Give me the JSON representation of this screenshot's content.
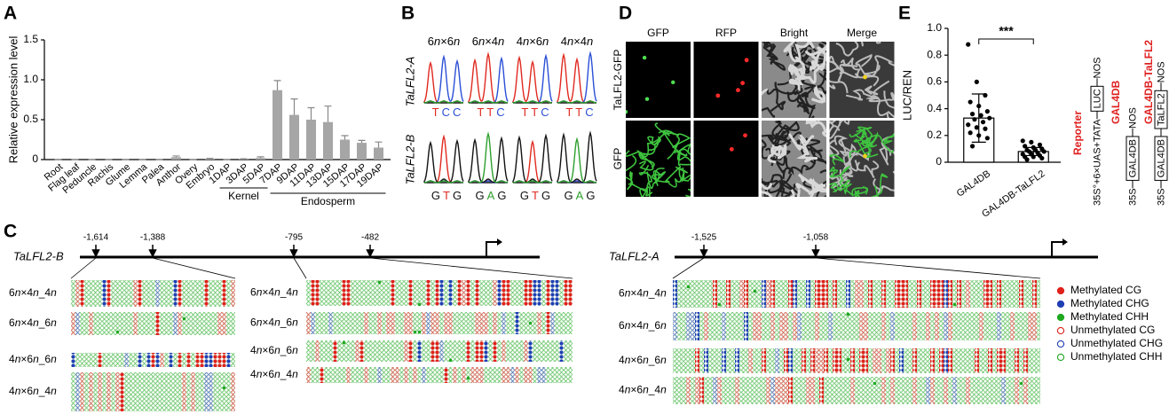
{
  "panel_labels": [
    "A",
    "B",
    "C",
    "D",
    "E"
  ],
  "chart_data": [
    {
      "type": "bar",
      "ylabel": "Relative expression level",
      "categories": [
        "Root",
        "Flag leaf",
        "Peduncle",
        "Rachis",
        "Glume",
        "Lemma",
        "Palea",
        "Anthor",
        "Overy",
        "Embryo",
        "1DAP",
        "3DAP",
        "5DAP",
        "7DAP",
        "9DAP",
        "11DAP",
        "13DAP",
        "15DAP",
        "17DAP",
        "19DAP"
      ],
      "values": [
        0,
        0,
        0,
        0,
        0,
        0,
        0,
        0.03,
        0,
        0.01,
        0,
        0.005,
        0.02,
        0.87,
        0.56,
        0.5,
        0.47,
        0.25,
        0.21,
        0.15
      ],
      "errors": [
        0,
        0,
        0,
        0,
        0,
        0,
        0,
        0.015,
        0,
        0.005,
        0,
        0.005,
        0.015,
        0.12,
        0.2,
        0.15,
        0.2,
        0.05,
        0.03,
        0.07
      ],
      "color": "#a6a6a6",
      "groups": [
        {
          "label": "Kernel"
        },
        {
          "label": "Endosperm"
        }
      ],
      "ylim": [
        0,
        1.5
      ],
      "yticks": [
        0,
        0.5,
        {
          "value": 1,
          "label": "1.0"
        },
        1.5
      ]
    },
    {
      "type": "bar",
      "ylabel": "LUC/REN",
      "categories": [
        "GAL4DB",
        "GAL4DB-TaLFL2"
      ],
      "values": [
        0.33,
        0.08
      ],
      "errors": [
        0.18,
        0.03
      ],
      "color": "#ffffff",
      "point_color": "#000000",
      "points": [
        [
          0.88,
          0.6,
          0.5,
          0.45,
          0.42,
          0.38,
          0.36,
          0.35,
          0.33,
          0.32,
          0.3,
          0.28,
          0.26,
          0.25,
          0.22,
          0.2,
          0.18,
          0.12
        ],
        [
          0.16,
          0.15,
          0.13,
          0.12,
          0.11,
          0.1,
          0.09,
          0.09,
          0.08,
          0.08,
          0.07,
          0.06,
          0.06,
          0.05,
          0.04,
          0.04,
          0.03,
          0.02
        ]
      ],
      "annotations": [
        "***"
      ],
      "ylim": [
        0,
        1
      ],
      "yticks": [
        0,
        0.2,
        0.4,
        0.6,
        0.8,
        {
          "value": 1,
          "label": "1.0"
        }
      ]
    }
  ],
  "chromatograms": {
    "crosses": [
      "6n×6n",
      "6n×4n",
      "4n×6n",
      "4n×4n"
    ],
    "base_colors": {
      "T": "#e0291f",
      "C": "#2a4fd6",
      "G": "#111111",
      "A": "#2ca02c"
    },
    "genes": [
      {
        "name": "TaLFL2-A",
        "bases": [
          "TCC",
          "TTC",
          "TTC",
          "TTC"
        ]
      },
      {
        "name": "TaLFL2-B",
        "bases": [
          "GTG",
          "GAG",
          "GTG",
          "GAG"
        ]
      }
    ]
  },
  "localization": {
    "channels": [
      "GFP",
      "RFP",
      "Bright",
      "Merge"
    ],
    "constructs": [
      "TaLFL2-GFP",
      "GFP"
    ]
  },
  "constructs": [
    {
      "name": "Reporter",
      "parts": [
        "35S°+6×UAS+TATA",
        "LUC",
        "NOS"
      ]
    },
    {
      "name": "GAL4DB",
      "parts": [
        "35S",
        "GAL4DB",
        "NOS"
      ]
    },
    {
      "name": "GAL4DB-TaLFL2",
      "parts": [
        "35S",
        "GAL4DB",
        "TaLFL2",
        "NOS"
      ]
    }
  ],
  "methylation": {
    "loci": [
      {
        "name": "TaLFL2-B",
        "sites": [
          "-1,614",
          "-1,388",
          "-795",
          "-482"
        ],
        "regions": [
          {
            "rows": [
              "6n×4n_4n",
              "6n×4n_6n",
              "4n×6n_6n",
              "4n×6n_4n"
            ]
          },
          {
            "rows": [
              "6n×4n_4n",
              "6n×4n_6n",
              "4n×6n_6n",
              "4n×6n_4n"
            ]
          }
        ]
      },
      {
        "name": "TaLFL2-A",
        "sites": [
          "-1,525",
          "-1,058"
        ],
        "regions": [
          {
            "rows": [
              "6n×4n_4n",
              "6n×4n_6n",
              "4n×6n_6n",
              "4n×6n_4n"
            ]
          }
        ]
      }
    ],
    "legend": [
      {
        "label": "Methylated CG",
        "color": "#e0201b",
        "filled": true
      },
      {
        "label": "Methylated CHG",
        "color": "#1f3fb4",
        "filled": true
      },
      {
        "label": "Methylated CHH",
        "color": "#1fa81f",
        "filled": true
      },
      {
        "label": "Unmethylated CG",
        "color": "#e0201b",
        "filled": false
      },
      {
        "label": "Unmethylated CHG",
        "color": "#1f3fb4",
        "filled": false
      },
      {
        "label": "Unmethylated CHH",
        "color": "#1fa81f",
        "filled": false
      }
    ]
  }
}
